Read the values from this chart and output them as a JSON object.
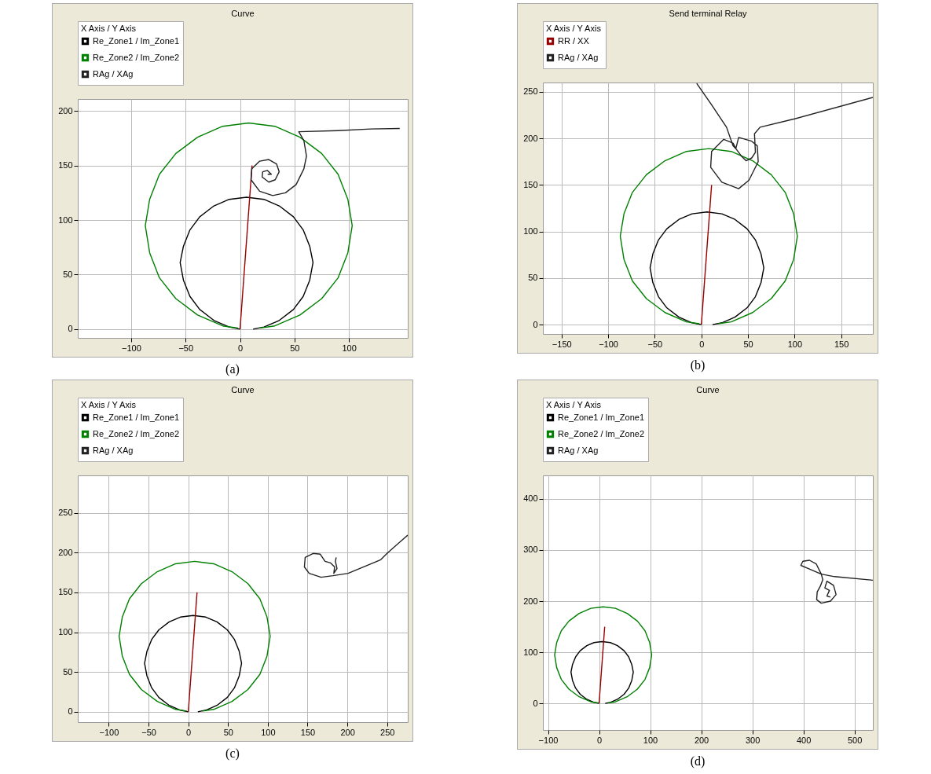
{
  "chart_data": [
    {
      "type": "line",
      "title": "Curve",
      "legend_title": "X Axis / Y Axis",
      "legend": "top",
      "grid": true,
      "xlim": [
        -149,
        154
      ],
      "ylim": [
        -8,
        211
      ],
      "xticks": [
        -100,
        -50,
        0,
        50,
        100
      ],
      "yticks": [
        0,
        50,
        100,
        150,
        200
      ],
      "annotations": [
        "(a)"
      ],
      "series": [
        {
          "name": "Re_Zone1 / Im_Zone1",
          "color": "#000000",
          "x": [
            12,
            22,
            36,
            49,
            58,
            64,
            67,
            64,
            58,
            49,
            36,
            22,
            6,
            -10,
            -24,
            -37,
            -46,
            -52,
            -55,
            -52,
            -46,
            -37,
            -24,
            -10,
            0
          ],
          "values": [
            0,
            2,
            8,
            18,
            30,
            45,
            61,
            76,
            91,
            103,
            113,
            119,
            121,
            119,
            113,
            103,
            91,
            76,
            61,
            45,
            30,
            18,
            8,
            2,
            0
          ]
        },
        {
          "name": "Re_Zone2 / Im_Zone2",
          "color": "#008000",
          "x": [
            18,
            32,
            55,
            75,
            90,
            99,
            103,
            99,
            90,
            75,
            55,
            32,
            8,
            -16,
            -39,
            -59,
            -74,
            -83,
            -87,
            -83,
            -74,
            -59,
            -39,
            -16,
            -2
          ],
          "values": [
            1,
            3,
            13,
            28,
            47,
            70,
            95,
            119,
            142,
            161,
            176,
            186,
            189,
            186,
            176,
            161,
            142,
            119,
            95,
            70,
            47,
            28,
            13,
            3,
            1
          ]
        },
        {
          "color": "#990000",
          "x": [
            0,
            11
          ],
          "values": [
            0,
            150
          ]
        },
        {
          "name": "RAg / XAg",
          "color": "#222222",
          "x": [
            146.6,
            120.1,
            89.6,
            53.9,
            58.6,
            61.0,
            58.6,
            51.5,
            41.7,
            30.0,
            18.0,
            10.1,
            10.8,
            18.0,
            26.4,
            33.5,
            35.9,
            32.3,
            26.4,
            20.3,
            20.8,
            25.2,
            28.7,
            25.4
          ],
          "values": [
            184,
            183.5,
            182,
            181,
            173,
            158.6,
            147,
            132.6,
            125,
            122.5,
            126.4,
            137,
            147,
            154,
            155.5,
            151.5,
            144.3,
            137,
            134.8,
            139.5,
            144.3,
            145.5,
            142,
            142
          ]
        }
      ]
    },
    {
      "type": "line",
      "title": "Send terminal Relay",
      "legend_title": "X Axis / Y Axis",
      "legend": "top",
      "grid": true,
      "xlim": [
        -170,
        184
      ],
      "ylim": [
        -10,
        260
      ],
      "xticks": [
        -150,
        -100,
        -50,
        0,
        50,
        100,
        150
      ],
      "yticks": [
        0,
        50,
        100,
        150,
        200,
        250
      ],
      "annotations": [
        "(b)"
      ],
      "series": [
        {
          "color": "#000000",
          "x": [
            12,
            22,
            36,
            49,
            58,
            64,
            67,
            64,
            58,
            49,
            36,
            22,
            6,
            -10,
            -24,
            -37,
            -46,
            -52,
            -55,
            -52,
            -46,
            -37,
            -24,
            -10,
            0
          ],
          "values": [
            0,
            2,
            8,
            18,
            30,
            45,
            61,
            76,
            91,
            103,
            113,
            119,
            121,
            119,
            113,
            103,
            91,
            76,
            61,
            45,
            30,
            18,
            8,
            2,
            0
          ]
        },
        {
          "color": "#008000",
          "x": [
            18,
            32,
            55,
            75,
            90,
            99,
            103,
            99,
            90,
            75,
            55,
            32,
            8,
            -16,
            -39,
            -59,
            -74,
            -83,
            -87,
            -83,
            -74,
            -59,
            -39,
            -16,
            -2
          ],
          "values": [
            1,
            3,
            13,
            28,
            47,
            70,
            95,
            119,
            142,
            161,
            176,
            186,
            189,
            186,
            176,
            161,
            142,
            119,
            95,
            70,
            47,
            28,
            13,
            3,
            1
          ]
        },
        {
          "name": "RR / XX",
          "color": "#990000",
          "x": [
            0,
            11
          ],
          "values": [
            0,
            150
          ]
        },
        {
          "name": "RAg / XAg",
          "color": "#222222",
          "x": [
            184,
            100,
            63,
            57,
            58,
            54,
            48,
            43,
            37,
            40,
            54,
            60,
            61,
            51,
            40,
            22,
            10,
            11,
            24,
            34,
            37,
            34,
            27,
            11,
            -5
          ],
          "values": [
            244,
            221,
            212,
            205,
            185,
            179,
            176,
            181,
            189,
            201,
            197,
            192,
            175,
            155,
            146,
            153,
            169,
            186,
            199,
            195,
            189,
            192,
            212,
            236,
            259
          ]
        }
      ]
    },
    {
      "type": "line",
      "title": "Curve",
      "legend_title": "X Axis / Y Axis",
      "legend": "top",
      "grid": true,
      "xlim": [
        -139,
        276
      ],
      "ylim": [
        -13,
        297
      ],
      "xticks": [
        -100,
        -50,
        0,
        50,
        100,
        150,
        200,
        250
      ],
      "yticks": [
        0,
        50,
        100,
        150,
        200,
        250
      ],
      "annotations": [
        "(c)"
      ],
      "series": [
        {
          "name": "Re_Zone1 / Im_Zone1",
          "color": "#000000",
          "x": [
            12,
            22,
            36,
            49,
            58,
            64,
            67,
            64,
            58,
            49,
            36,
            22,
            6,
            -10,
            -24,
            -37,
            -46,
            -52,
            -55,
            -52,
            -46,
            -37,
            -24,
            -10,
            0
          ],
          "values": [
            0,
            2,
            8,
            18,
            30,
            45,
            61,
            76,
            91,
            103,
            113,
            119,
            121,
            119,
            113,
            103,
            91,
            76,
            61,
            45,
            30,
            18,
            8,
            2,
            0
          ]
        },
        {
          "name": "Re_Zone2 / Im_Zone2",
          "color": "#008000",
          "x": [
            18,
            32,
            55,
            75,
            90,
            99,
            103,
            99,
            90,
            75,
            55,
            32,
            8,
            -16,
            -39,
            -59,
            -74,
            -83,
            -87,
            -83,
            -74,
            -59,
            -39,
            -16,
            -2
          ],
          "values": [
            1,
            3,
            13,
            28,
            47,
            70,
            95,
            119,
            142,
            161,
            176,
            186,
            189,
            186,
            176,
            161,
            142,
            119,
            95,
            70,
            47,
            28,
            13,
            3,
            1
          ]
        },
        {
          "color": "#990000",
          "x": [
            0,
            11
          ],
          "values": [
            0,
            150
          ]
        },
        {
          "name": "RAg / XAg",
          "color": "#222222",
          "x": [
            276,
            251,
            242,
            201,
            182,
            167,
            152,
            146,
            147,
            157,
            166,
            172,
            179,
            184,
            183,
            187,
            185,
            186
          ],
          "values": [
            222,
            200,
            191,
            174,
            171,
            169,
            174,
            182,
            194,
            199,
            198,
            189,
            187,
            182,
            174,
            180,
            189,
            194
          ]
        }
      ]
    },
    {
      "type": "line",
      "title": "Curve",
      "legend_title": "X Axis / Y Axis",
      "legend": "top",
      "grid": true,
      "xlim": [
        -110,
        536
      ],
      "ylim": [
        -52,
        446
      ],
      "xticks": [
        -100,
        0,
        100,
        200,
        300,
        400,
        500
      ],
      "yticks": [
        0,
        100,
        200,
        300,
        400
      ],
      "annotations": [
        "(d)"
      ],
      "series": [
        {
          "name": "Re_Zone1 / Im_Zone1",
          "color": "#000000",
          "x": [
            12,
            22,
            36,
            49,
            58,
            64,
            67,
            64,
            58,
            49,
            36,
            22,
            6,
            -10,
            -24,
            -37,
            -46,
            -52,
            -55,
            -52,
            -46,
            -37,
            -24,
            -10,
            0
          ],
          "values": [
            0,
            2,
            8,
            18,
            30,
            45,
            61,
            76,
            91,
            103,
            113,
            119,
            121,
            119,
            113,
            103,
            91,
            76,
            61,
            45,
            30,
            18,
            8,
            2,
            0
          ]
        },
        {
          "name": "Re_Zone2 / Im_Zone2",
          "color": "#008000",
          "x": [
            18,
            32,
            55,
            75,
            90,
            99,
            103,
            99,
            90,
            75,
            55,
            32,
            8,
            -16,
            -39,
            -59,
            -74,
            -83,
            -87,
            -83,
            -74,
            -59,
            -39,
            -16,
            -2
          ],
          "values": [
            1,
            3,
            13,
            28,
            47,
            70,
            95,
            119,
            142,
            161,
            176,
            186,
            189,
            186,
            176,
            161,
            142,
            119,
            95,
            70,
            47,
            28,
            13,
            3,
            1
          ]
        },
        {
          "color": "#990000",
          "x": [
            0,
            11
          ],
          "values": [
            0,
            150
          ]
        },
        {
          "name": "RAg / XAg",
          "color": "#222222",
          "x": [
            536,
            461,
            435,
            425,
            412,
            399,
            395,
            409,
            435,
            438,
            433,
            427,
            426,
            435,
            453,
            464,
            459,
            446,
            442,
            451,
            446,
            453
          ],
          "values": [
            241,
            248,
            253,
            273,
            280,
            278,
            270,
            264,
            253,
            242,
            229,
            218,
            203,
            196,
            200,
            213,
            231,
            239,
            226,
            221,
            210,
            208
          ]
        }
      ]
    }
  ]
}
